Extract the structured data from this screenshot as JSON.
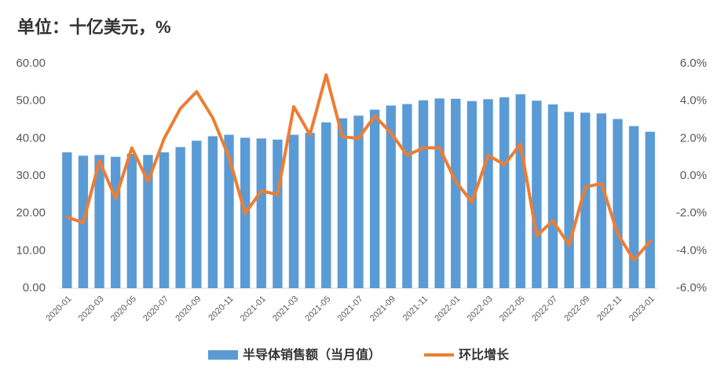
{
  "chart_data": {
    "type": "bar_line",
    "title": "单位：十亿美元，%",
    "categories": [
      "2020-01",
      null,
      "2020-03",
      null,
      "2020-05",
      null,
      "2020-07",
      null,
      "2020-09",
      null,
      "2020-11",
      null,
      "2021-01",
      null,
      "2021-03",
      null,
      "2021-05",
      null,
      "2021-07",
      null,
      "2021-09",
      null,
      "2021-11",
      null,
      "2022-01",
      null,
      "2022-03",
      null,
      "2022-05",
      null,
      "2022-07",
      null,
      "2022-09",
      null,
      "2022-11",
      null,
      "2023-01"
    ],
    "series": [
      {
        "name": "半导体销售额（当月值）",
        "color": "#5b9bd5",
        "type": "bar",
        "values": [
          36.3,
          35.4,
          35.6,
          35.1,
          35.9,
          35.6,
          36.3,
          37.7,
          39.4,
          40.6,
          41.0,
          40.2,
          40.0,
          39.7,
          41.0,
          41.5,
          44.3,
          45.4,
          46.1,
          47.7,
          48.8,
          49.2,
          50.2,
          50.7,
          50.6,
          50.0,
          50.5,
          51.0,
          51.8,
          50.1,
          49.1,
          47.1,
          46.9,
          46.7,
          45.2,
          43.3,
          41.8
        ]
      },
      {
        "name": "环比增长",
        "color": "#ed7d31",
        "type": "line",
        "axis": "y2",
        "values": [
          -2.2,
          -2.5,
          0.8,
          -1.2,
          1.5,
          -0.3,
          2.0,
          3.6,
          4.5,
          3.1,
          1.0,
          -2.0,
          -0.8,
          -1.0,
          3.7,
          2.2,
          5.4,
          2.1,
          2.0,
          3.2,
          2.3,
          1.1,
          1.5,
          1.5,
          -0.3,
          -1.4,
          1.1,
          0.6,
          1.7,
          -3.2,
          -2.4,
          -3.7,
          -0.6,
          -0.4,
          -3.1,
          -4.5,
          -3.5
        ]
      }
    ],
    "ylim": [
      0,
      60
    ],
    "yticks": [
      {
        "value": 0,
        "label": "0.00"
      },
      {
        "value": 10,
        "label": "10.00"
      },
      {
        "value": 20,
        "label": "20.00"
      },
      {
        "value": 30,
        "label": "30.00"
      },
      {
        "value": 40,
        "label": "40.00"
      },
      {
        "value": 50,
        "label": "50.00"
      },
      {
        "value": 60,
        "label": "60.00"
      }
    ],
    "y2lim": [
      -6,
      6
    ],
    "y2ticks": [
      {
        "value": -6,
        "label": "-6.0%"
      },
      {
        "value": -4,
        "label": "-4.0%"
      },
      {
        "value": -2,
        "label": "-2.0%"
      },
      {
        "value": 0,
        "label": "0.0%"
      },
      {
        "value": 2,
        "label": "2.0%"
      },
      {
        "value": 4,
        "label": "4.0%"
      },
      {
        "value": 6,
        "label": "6.0%"
      }
    ],
    "legend": "bottom"
  }
}
